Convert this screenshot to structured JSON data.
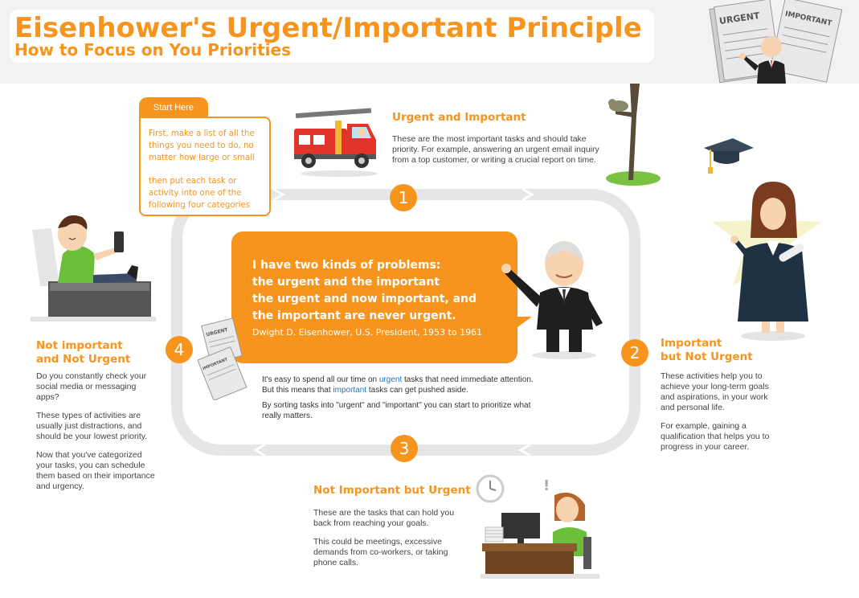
{
  "title": "Eisenhower's Urgent/Important Principle",
  "subtitle": "How to Focus on You Priorities",
  "start": {
    "tab": "Start Here",
    "para1": "First, make a list of all the things you need to do, no matter how large or small",
    "para2": "then put each task or activity into one of the following four categories"
  },
  "quadrants": {
    "q1": {
      "number": "1",
      "heading": "Urgent and Important",
      "text": "These are the most important tasks and should take priority. For example, answering an urgent email inquiry from a top customer, or writing a crucial report on time."
    },
    "q2": {
      "number": "2",
      "heading_line1": "Important",
      "heading_line2": "but Not Urgent",
      "para1": "These activities help you to achieve your long-term goals and aspirations, in your work and personal life.",
      "para2": "For example, gaining a qualification that helps you to progress in your career."
    },
    "q3": {
      "number": "3",
      "heading": "Not Important but Urgent",
      "para1": "These are the tasks that can hold you back from reaching your goals.",
      "para2": "This could be meetings, excessive demands from co-workers, or taking phone calls."
    },
    "q4": {
      "number": "4",
      "heading_line1": "Not important",
      "heading_line2": "and Not Urgent",
      "para1": "Do you constantly check your social media or messaging apps?",
      "para2": "These types of activities are usually just distractions, and should be your lowest priority.",
      "para3": "Now that you've categorized your tasks, you can schedule them based on their importance and urgency."
    }
  },
  "quote": {
    "line1": "I have two kinds of problems:",
    "line2": "the urgent and the important",
    "line3": "the urgent and now important, and",
    "line4": "the important are never urgent.",
    "attribution": "Dwight D. Eisenhower, U.S. President, 1953 to 1961"
  },
  "center": {
    "p1_a": "It's easy to spend all our time on ",
    "p1_urgent": "urgent",
    "p1_b": " tasks that need immediate attention. But this means that ",
    "p1_important": "important",
    "p1_c": " tasks can get pushed aside.",
    "p2": "By sorting tasks into \"urgent\" and \"important\" you can start to prioritize what really matters."
  },
  "papers": {
    "urgent": "URGENT",
    "important": "IMPORTANT"
  },
  "colors": {
    "accent": "#f7941d",
    "track": "#e6e6e6",
    "link_blue": "#1f73b7"
  }
}
